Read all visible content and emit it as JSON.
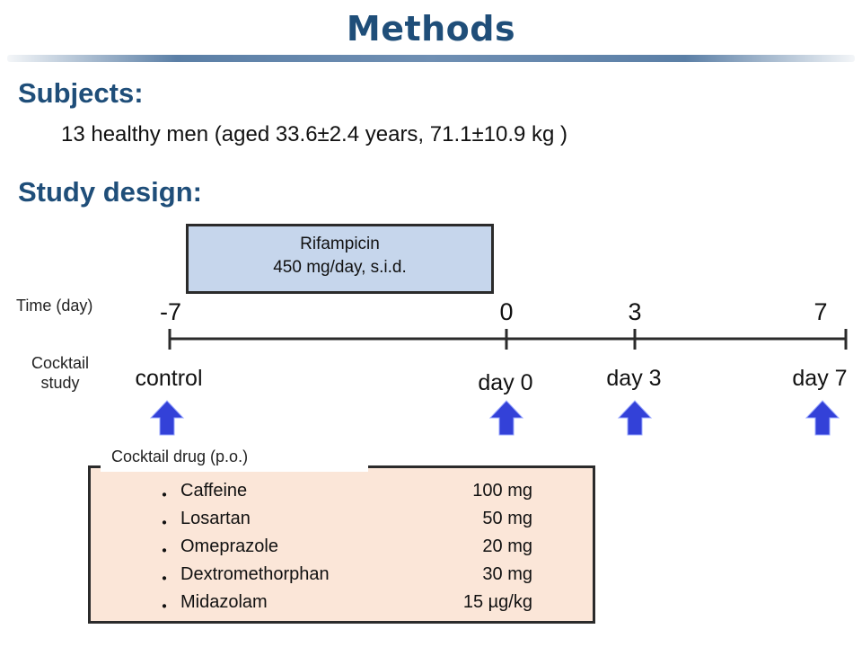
{
  "title": "Methods",
  "subjects": {
    "heading": "Subjects:",
    "text": "13 healthy men (aged 33.6±2.4 years, 71.1±10.9 kg )"
  },
  "study_design": {
    "heading": "Study design:",
    "rifampicin_box": {
      "line1": "Rifampicin",
      "line2": "450 mg/day, s.i.d."
    },
    "time_label": "Time (day)",
    "cocktail_label_line1": "Cocktail",
    "cocktail_label_line2": "study",
    "timeline_ticks": [
      "-7",
      "0",
      "3",
      "7"
    ],
    "study_days": [
      "control",
      "day 0",
      "day 3",
      "day 7"
    ],
    "cocktail_drug_caption": "Cocktail drug (p.o.)",
    "drugs": [
      {
        "bullet": "・",
        "name": "Caffeine",
        "dose": "100 mg"
      },
      {
        "bullet": "・",
        "name": "Losartan",
        "dose": "50 mg"
      },
      {
        "bullet": "・",
        "name": "Omeprazole",
        "dose": "20 mg"
      },
      {
        "bullet": "・",
        "name": "Dextromethorphan",
        "dose": "30 mg"
      },
      {
        "bullet": "・",
        "name": "Midazolam",
        "dose": "15 µg/kg"
      }
    ]
  },
  "colors": {
    "heading": "#1f4e79",
    "rifampicin_fill": "#c6d6ec",
    "drug_box_fill": "#fbe6d8",
    "arrow": "#3341d8"
  }
}
